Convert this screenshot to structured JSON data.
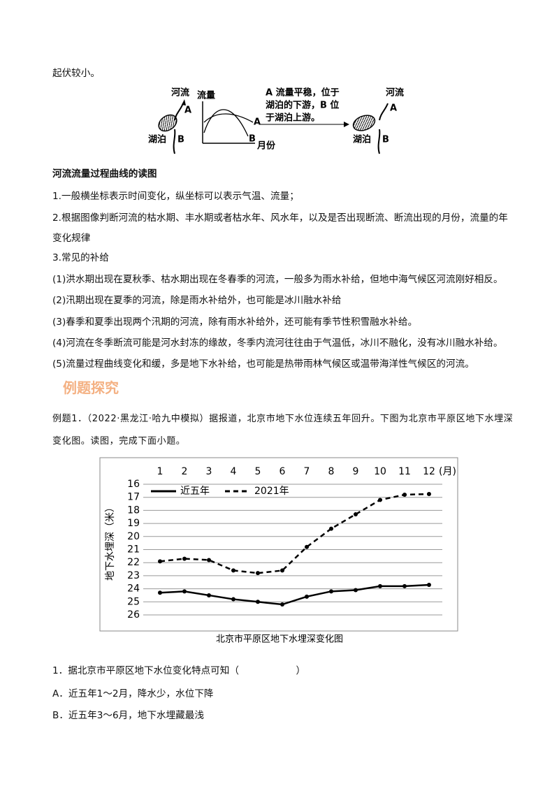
{
  "intro": "起伏较小。",
  "diagram": {
    "left_river": "河流",
    "left_a": "A",
    "left_lake": "湖泊",
    "left_b": "B",
    "graph_y": "流量",
    "graph_a": "A",
    "graph_b": "B",
    "graph_x": "月份",
    "note_lines": [
      "A 流量平稳，位于",
      "湖泊的下游，B 位",
      "于湖泊上游。"
    ],
    "right_river": "河流",
    "right_a": "A",
    "right_lake": "湖泊",
    "right_b": "B"
  },
  "section_heading": "河流流量过程曲线的读图",
  "paragraphs": [
    "1.一般横坐标表示时间变化，纵坐标可以表示气温、流量；",
    "2.根据图像判断河流的枯水期、丰水期或者枯水年、风水年，以及是否出现断流、断流出现的月份，流量的年变化规律",
    "3.常见的补给",
    "(1)洪水期出现在夏秋季、枯水期出现在冬春季的河流，一般多为雨水补给，但地中海气候区河流刚好相反。",
    "(2)汛期出现在夏季的河流，除是雨水补给外，也可能是冰川融水补给",
    "(3)春季和夏季出现两个汛期的河流，除有雨水补给外，还可能有季节性积雪融水补给。",
    "(4)河流在冬季断流可能是河水封冻的缘故，冬季内流河往往由于气温低，冰川不融化，没有冰川融水补给。",
    "(5)流量过程曲线变化和缓，多是地下水补给，也可能是热带雨林气候区或温带海洋性气候区的河流。"
  ],
  "example_heading": "例题探究",
  "example_intro": "例题1．（2022·黑龙江·哈九中模拟）据报道，北京市地下水位连续五年回升。下图为北京市平原区地下水埋深变化图。读图，完成下面小题。",
  "chart_data": {
    "type": "line",
    "title": "北京市平原区地下水埋深变化图",
    "y_label": "地下水埋深（米）",
    "x_unit": "(月)",
    "categories": [
      "1",
      "2",
      "3",
      "4",
      "5",
      "6",
      "7",
      "8",
      "9",
      "10",
      "11",
      "12"
    ],
    "series": [
      {
        "name": "近五年",
        "color": "#000000",
        "dash": false,
        "values": [
          24.3,
          24.2,
          24.5,
          24.8,
          25.0,
          25.2,
          24.6,
          24.2,
          24.1,
          23.8,
          23.8,
          23.7
        ]
      },
      {
        "name": "2021年",
        "color": "#000000",
        "dash": true,
        "values": [
          21.9,
          21.7,
          21.8,
          22.6,
          22.8,
          22.6,
          20.8,
          19.4,
          18.3,
          17.2,
          16.8,
          16.75
        ]
      }
    ],
    "ylim": [
      16,
      26
    ],
    "y_inverted": true,
    "yticks": [
      16,
      17,
      18,
      19,
      20,
      21,
      22,
      23,
      24,
      25,
      26
    ],
    "grid": true,
    "legend": "top-left"
  },
  "question": {
    "stem": "1．据北京市平原区地下水位变化特点可知（　　　　　　）",
    "options": [
      "A．近五年1～2月，降水少，水位下降",
      "B．近五年3～6月，地下水埋藏最浅"
    ]
  }
}
